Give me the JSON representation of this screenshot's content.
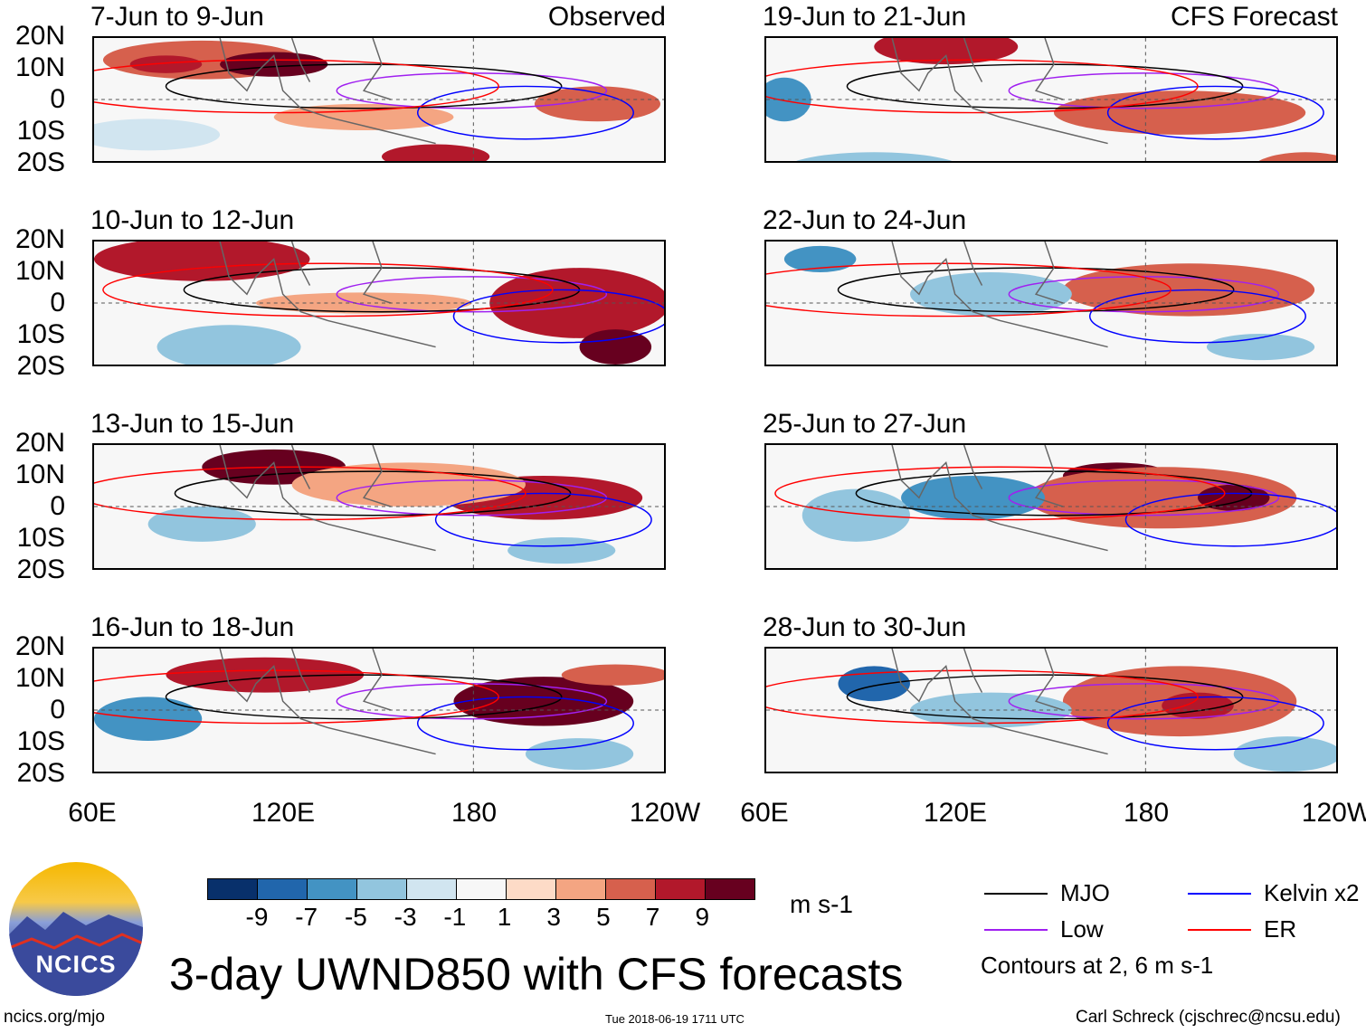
{
  "panels": [
    {
      "title": "7-Jun to 9-Jun",
      "label": "Observed"
    },
    {
      "title": "19-Jun to 21-Jun",
      "label": "CFS Forecast"
    },
    {
      "title": "10-Jun to 12-Jun"
    },
    {
      "title": "22-Jun to 24-Jun"
    },
    {
      "title": "13-Jun to 15-Jun"
    },
    {
      "title": "25-Jun to 27-Jun"
    },
    {
      "title": "16-Jun to 18-Jun"
    },
    {
      "title": "28-Jun to 30-Jun"
    }
  ],
  "y_ticks": [
    "20N",
    "10N",
    "0",
    "10S",
    "20S"
  ],
  "x_ticks": [
    "60E",
    "120E",
    "180",
    "120W"
  ],
  "colorbar": {
    "labels": [
      "-9",
      "-7",
      "-5",
      "-3",
      "-1",
      "1",
      "3",
      "5",
      "7",
      "9"
    ],
    "colors": [
      "#08306b",
      "#2166ac",
      "#4393c3",
      "#92c5de",
      "#d1e5f0",
      "#f7f7f7",
      "#fddbc7",
      "#f4a582",
      "#d6604d",
      "#b2182b",
      "#67001f"
    ],
    "units": "m s-1"
  },
  "legend": {
    "items": [
      {
        "label": "MJO",
        "color": "#000000"
      },
      {
        "label": "Kelvin x2",
        "color": "#0000ff"
      },
      {
        "label": "Low",
        "color": "#a020f0"
      },
      {
        "label": "ER",
        "color": "#ff0000"
      }
    ],
    "note": "Contours at 2, 6 m s-1"
  },
  "logo": {
    "text": "NCICS"
  },
  "main_title": "3-day UWND850 with CFS forecasts",
  "footer": {
    "url": "ncics.org/mjo",
    "timestamp": "Tue 2018-06-19 1711 UTC",
    "credit": "Carl Schreck (cjschrec@ncsu.edu)"
  }
}
